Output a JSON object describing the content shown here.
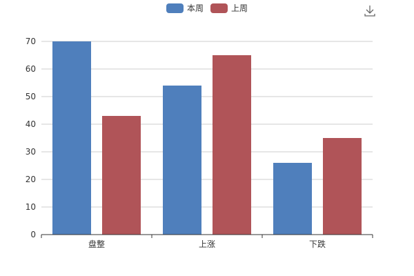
{
  "chart_data": {
    "type": "bar",
    "title": "",
    "xlabel": "",
    "ylabel": "",
    "categories": [
      "盘整",
      "上涨",
      "下跌"
    ],
    "series": [
      {
        "name": "本周",
        "values": [
          70,
          54,
          26
        ],
        "color": "#4f7fbc"
      },
      {
        "name": "上周",
        "values": [
          43,
          65,
          35
        ],
        "color": "#b05458"
      }
    ],
    "ylim": [
      0,
      70
    ],
    "yticks": [
      0,
      10,
      20,
      30,
      40,
      50,
      60,
      70
    ],
    "grid": true,
    "legend_position": "top-center"
  },
  "toolbox": {
    "icon": "download-icon"
  }
}
